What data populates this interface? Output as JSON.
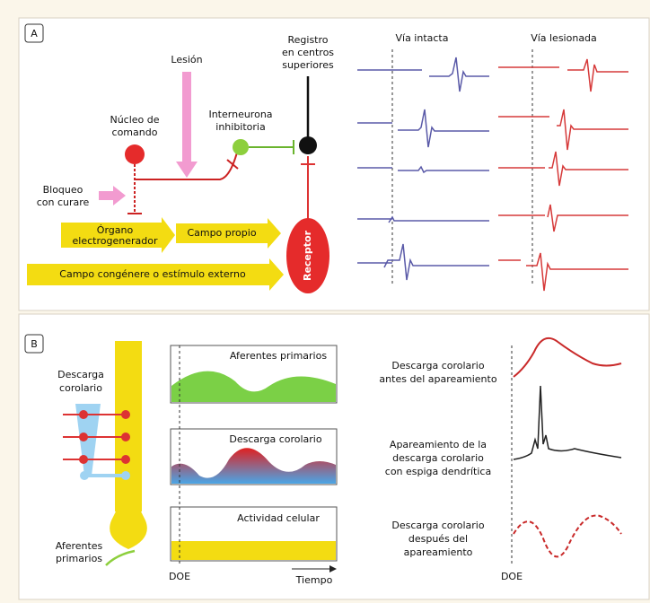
{
  "panel_a": {
    "label": "A",
    "registro": [
      "Registro",
      "en centros",
      "superiores"
    ],
    "lesion": "Lesión",
    "nucleo": [
      "Núcleo de",
      "comando"
    ],
    "interneurona": [
      "Interneurona",
      "inhibitoria"
    ],
    "bloqueo": [
      "Bloqueo",
      "con curare"
    ],
    "organo": [
      "Órgano",
      "electrogenerador"
    ],
    "campo_propio": "Campo propio",
    "receptor": "Receptor",
    "campo_congenere": "Campo congénere o estímulo externo",
    "via_intacta": "Vía intacta",
    "via_lesionada": "Vía lesionada"
  },
  "panel_b": {
    "label": "B",
    "descarga_left": [
      "Descarga",
      "corolario"
    ],
    "aferentes_left": [
      "Aferentes",
      "primarios"
    ],
    "box1": "Aferentes primarios",
    "box2": "Descarga corolario",
    "box3": "Actividad celular",
    "doe_left": "DOE",
    "tiempo": "Tiempo",
    "antes": [
      "Descarga corolario",
      "antes del apareamiento"
    ],
    "apareamiento": [
      "Apareamiento de la",
      "descarga corolario",
      "con espiga dendrítica"
    ],
    "despues": [
      "Descarga corolario",
      "después del",
      "apareamiento"
    ],
    "doe_right": "DOE"
  }
}
